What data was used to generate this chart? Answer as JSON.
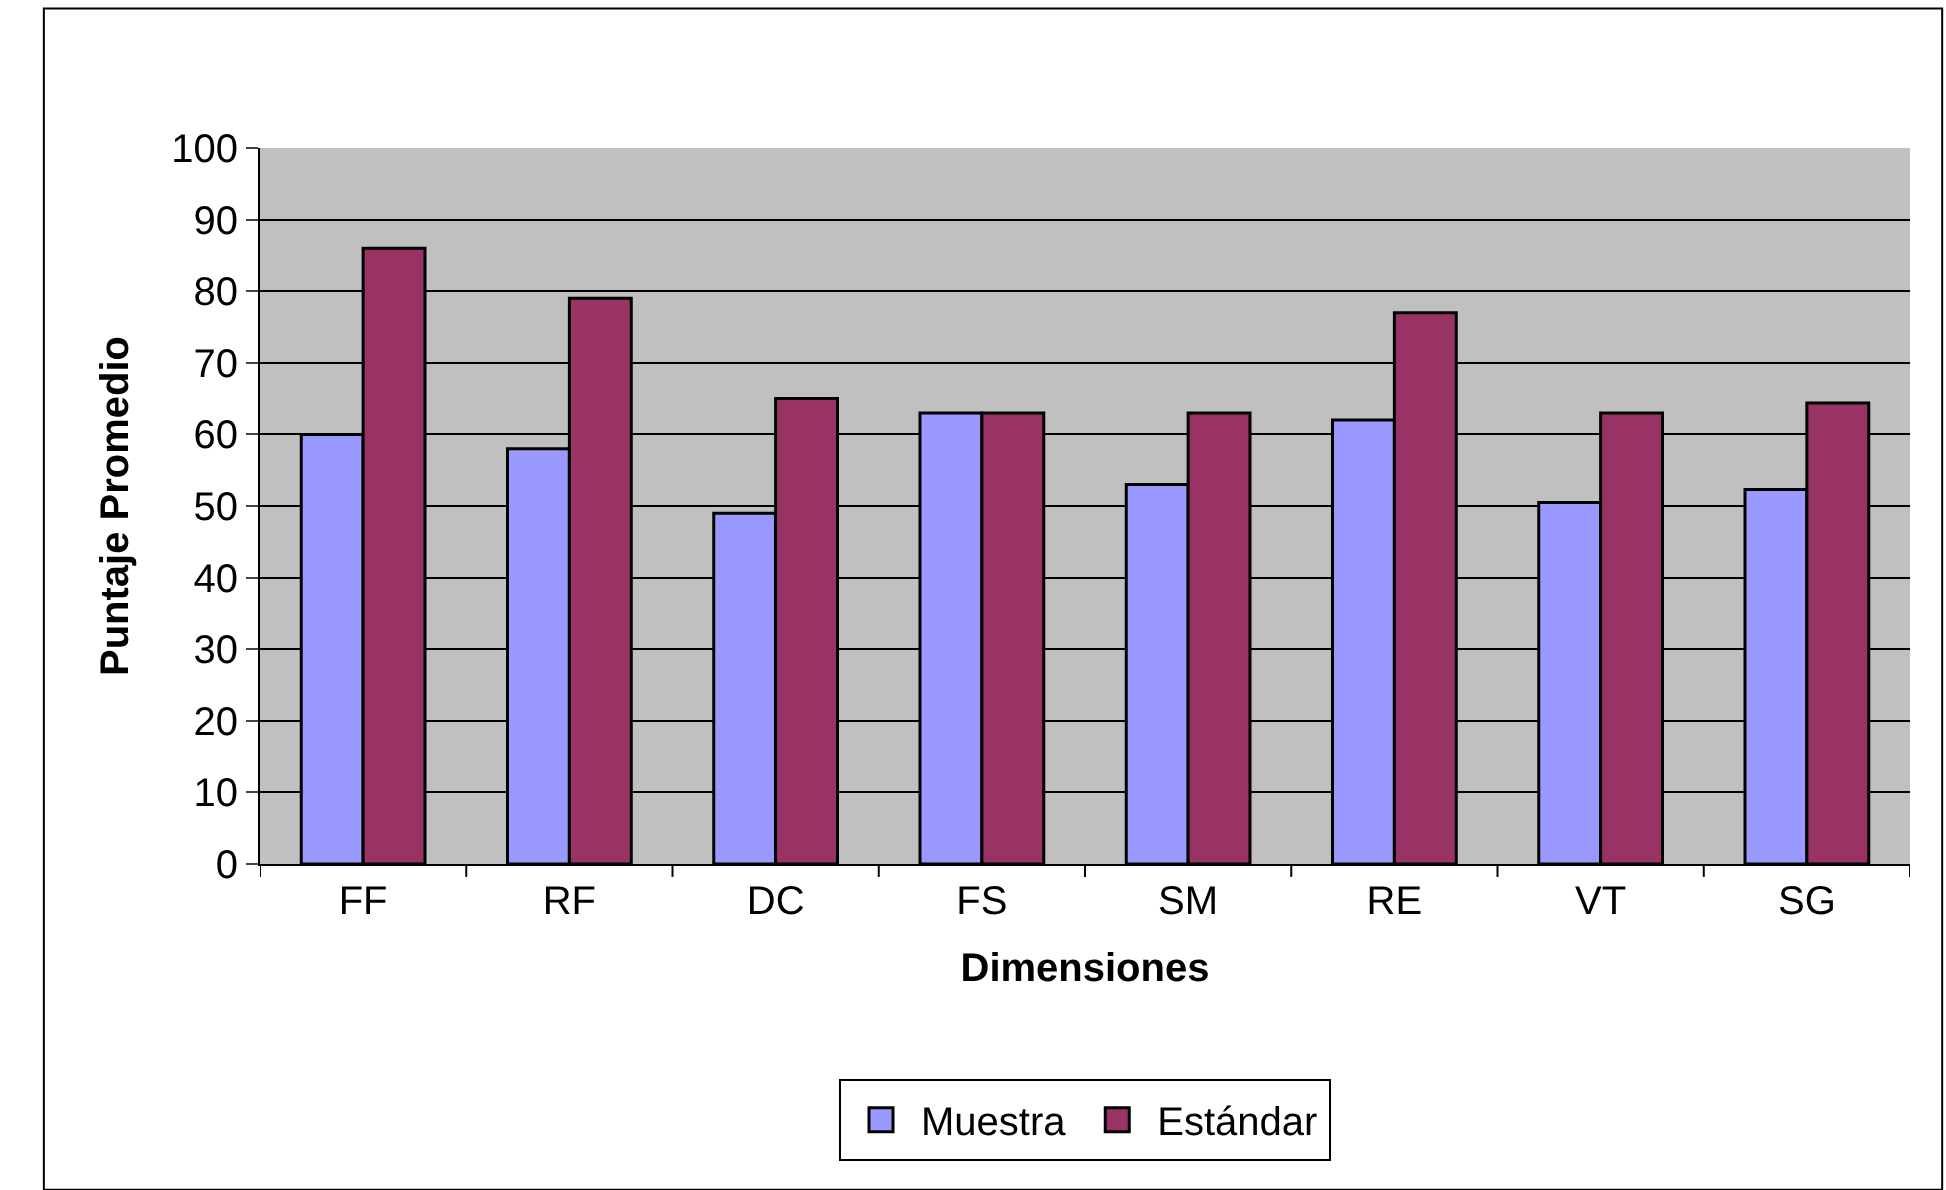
{
  "chart_data": {
    "type": "bar",
    "xlabel": "Dimensiones",
    "ylabel": "Puntaje Promedio",
    "categories": [
      "FF",
      "RF",
      "DC",
      "FS",
      "SM",
      "RE",
      "VT",
      "SG"
    ],
    "series": [
      {
        "name": "Muestra",
        "color": "#9999ff",
        "values": [
          60,
          58,
          49,
          63,
          53,
          62,
          50.5,
          52.3
        ]
      },
      {
        "name": "Estándar",
        "color": "#993366",
        "values": [
          86,
          79,
          65,
          63,
          63,
          77,
          63,
          64.4
        ]
      }
    ],
    "ylim": [
      0,
      100
    ],
    "yticks": [
      0,
      10,
      20,
      30,
      40,
      50,
      60,
      70,
      80,
      90,
      100
    ],
    "grid": "y",
    "legend": "bottom"
  }
}
